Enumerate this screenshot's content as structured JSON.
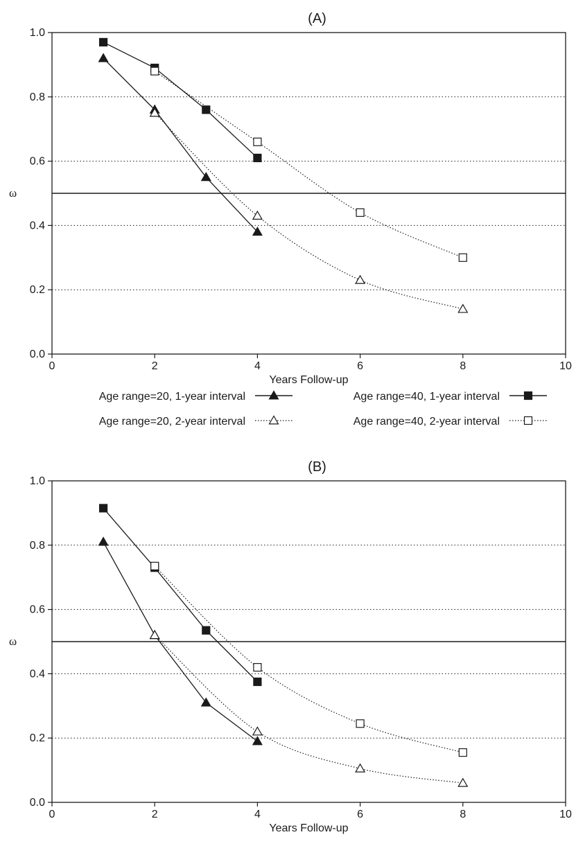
{
  "chart_data": [
    {
      "type": "line",
      "title": "(A)",
      "xlabel": "Years Follow-up",
      "ylabel": "ω",
      "xlim": [
        0,
        10
      ],
      "ylim": [
        0,
        1
      ],
      "xticks": [
        "0",
        "2",
        "4",
        "6",
        "8",
        "10"
      ],
      "yticks": [
        "0.0",
        "0.2",
        "0.4",
        "0.6",
        "0.8",
        "1.0"
      ],
      "reference_line_y": 0.5,
      "grid": "horizontal dotted",
      "series": [
        {
          "name": "Age range=20, 1-year interval",
          "marker": "filled-triangle",
          "line": "solid",
          "x": [
            1,
            2,
            3,
            4
          ],
          "y": [
            0.92,
            0.76,
            0.55,
            0.38
          ]
        },
        {
          "name": "Age range=40, 1-year interval",
          "marker": "filled-square",
          "line": "solid",
          "x": [
            1,
            2,
            3,
            4
          ],
          "y": [
            0.97,
            0.89,
            0.76,
            0.61
          ]
        },
        {
          "name": "Age range=20, 2-year interval",
          "marker": "open-triangle",
          "line": "dotted",
          "x": [
            2,
            4,
            6,
            8
          ],
          "y": [
            0.75,
            0.43,
            0.23,
            0.14
          ]
        },
        {
          "name": "Age range=40, 2-year interval",
          "marker": "open-square",
          "line": "dotted",
          "x": [
            2,
            4,
            6,
            8
          ],
          "y": [
            0.88,
            0.66,
            0.44,
            0.3
          ]
        }
      ]
    },
    {
      "type": "line",
      "title": "(B)",
      "xlabel": "Years Follow-up",
      "ylabel": "ω",
      "xlim": [
        0,
        10
      ],
      "ylim": [
        0,
        1
      ],
      "xticks": [
        "0",
        "2",
        "4",
        "6",
        "8",
        "10"
      ],
      "yticks": [
        "0.0",
        "0.2",
        "0.4",
        "0.6",
        "0.8",
        "1.0"
      ],
      "reference_line_y": 0.5,
      "grid": "horizontal dotted",
      "series": [
        {
          "name": "Age range=20, 1-year interval",
          "marker": "filled-triangle",
          "line": "solid",
          "x": [
            1,
            2,
            3,
            4
          ],
          "y": [
            0.81,
            0.52,
            0.31,
            0.19
          ]
        },
        {
          "name": "Age range=40, 1-year interval",
          "marker": "filled-square",
          "line": "solid",
          "x": [
            1,
            2,
            3,
            4
          ],
          "y": [
            0.915,
            0.73,
            0.535,
            0.375
          ]
        },
        {
          "name": "Age range=20, 2-year interval",
          "marker": "open-triangle",
          "line": "dotted",
          "x": [
            2,
            4,
            6,
            8
          ],
          "y": [
            0.52,
            0.22,
            0.105,
            0.06
          ]
        },
        {
          "name": "Age range=40, 2-year interval",
          "marker": "open-square",
          "line": "dotted",
          "x": [
            2,
            4,
            6,
            8
          ],
          "y": [
            0.735,
            0.42,
            0.245,
            0.155
          ]
        }
      ]
    }
  ],
  "legend": {
    "items": [
      {
        "label": "Age range=20, 1-year interval",
        "marker": "filled-triangle",
        "line": "solid"
      },
      {
        "label": "Age range=40, 1-year interval",
        "marker": "filled-square",
        "line": "solid"
      },
      {
        "label": "Age range=20, 2-year interval",
        "marker": "open-triangle",
        "line": "dotted"
      },
      {
        "label": "Age range=40, 2-year interval",
        "marker": "open-square",
        "line": "dotted"
      }
    ]
  },
  "colors": {
    "ink": "#1a1a1a",
    "background": "#ffffff"
  }
}
